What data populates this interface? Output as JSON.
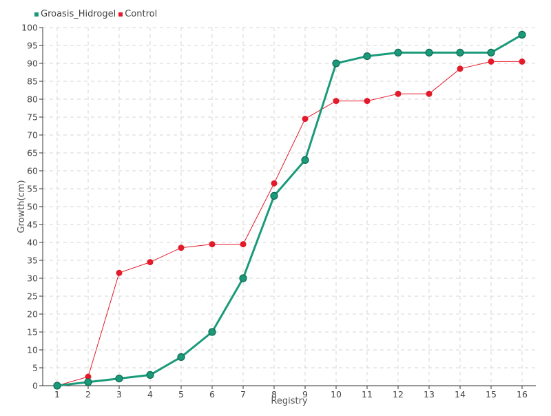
{
  "chart_data": {
    "type": "line",
    "xlabel": "Registry",
    "ylabel": "Growth(cm)",
    "ylim": [
      0,
      100
    ],
    "ytick_step": 5,
    "grid": true,
    "legend_position": "top-left",
    "categories": [
      "1",
      "2",
      "3",
      "4",
      "5",
      "6",
      "7",
      "8",
      "9",
      "10",
      "11",
      "12",
      "13",
      "14",
      "15",
      "16"
    ],
    "series": [
      {
        "name": "Groasis_Hidrogel",
        "color": "#1a9a7a",
        "values": [
          0,
          1,
          2,
          3,
          8,
          15,
          30,
          53,
          63,
          90,
          92,
          93,
          93,
          93,
          93,
          98
        ]
      },
      {
        "name": "Control",
        "color": "#e31a2a",
        "values": [
          0,
          2.5,
          31.5,
          34.5,
          38.5,
          39.5,
          39.5,
          56.5,
          74.5,
          79.5,
          79.5,
          81.5,
          81.5,
          88.5,
          90.5,
          90.5
        ]
      }
    ]
  }
}
